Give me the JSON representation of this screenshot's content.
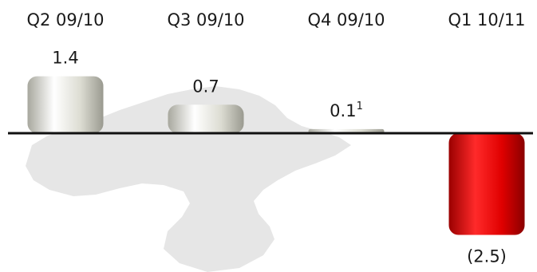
{
  "chart_data": {
    "type": "bar",
    "categories": [
      "Q2 09/10",
      "Q3 09/10",
      "Q4 09/10",
      "Q1 10/11"
    ],
    "values": [
      1.4,
      0.7,
      0.1,
      -2.5
    ],
    "value_labels": [
      "1.4",
      "0.7",
      "0.1",
      "(2.5)"
    ],
    "footnote_marks": [
      "",
      "",
      "1",
      ""
    ],
    "title": "",
    "xlabel": "",
    "ylabel": "",
    "ylim": [
      -2.5,
      1.4
    ],
    "grid": false,
    "legend": "none",
    "colors": {
      "positive": "#d9d9cf",
      "negative": "#e00000",
      "axis": "#111111",
      "map": "#e6e6e6"
    }
  }
}
